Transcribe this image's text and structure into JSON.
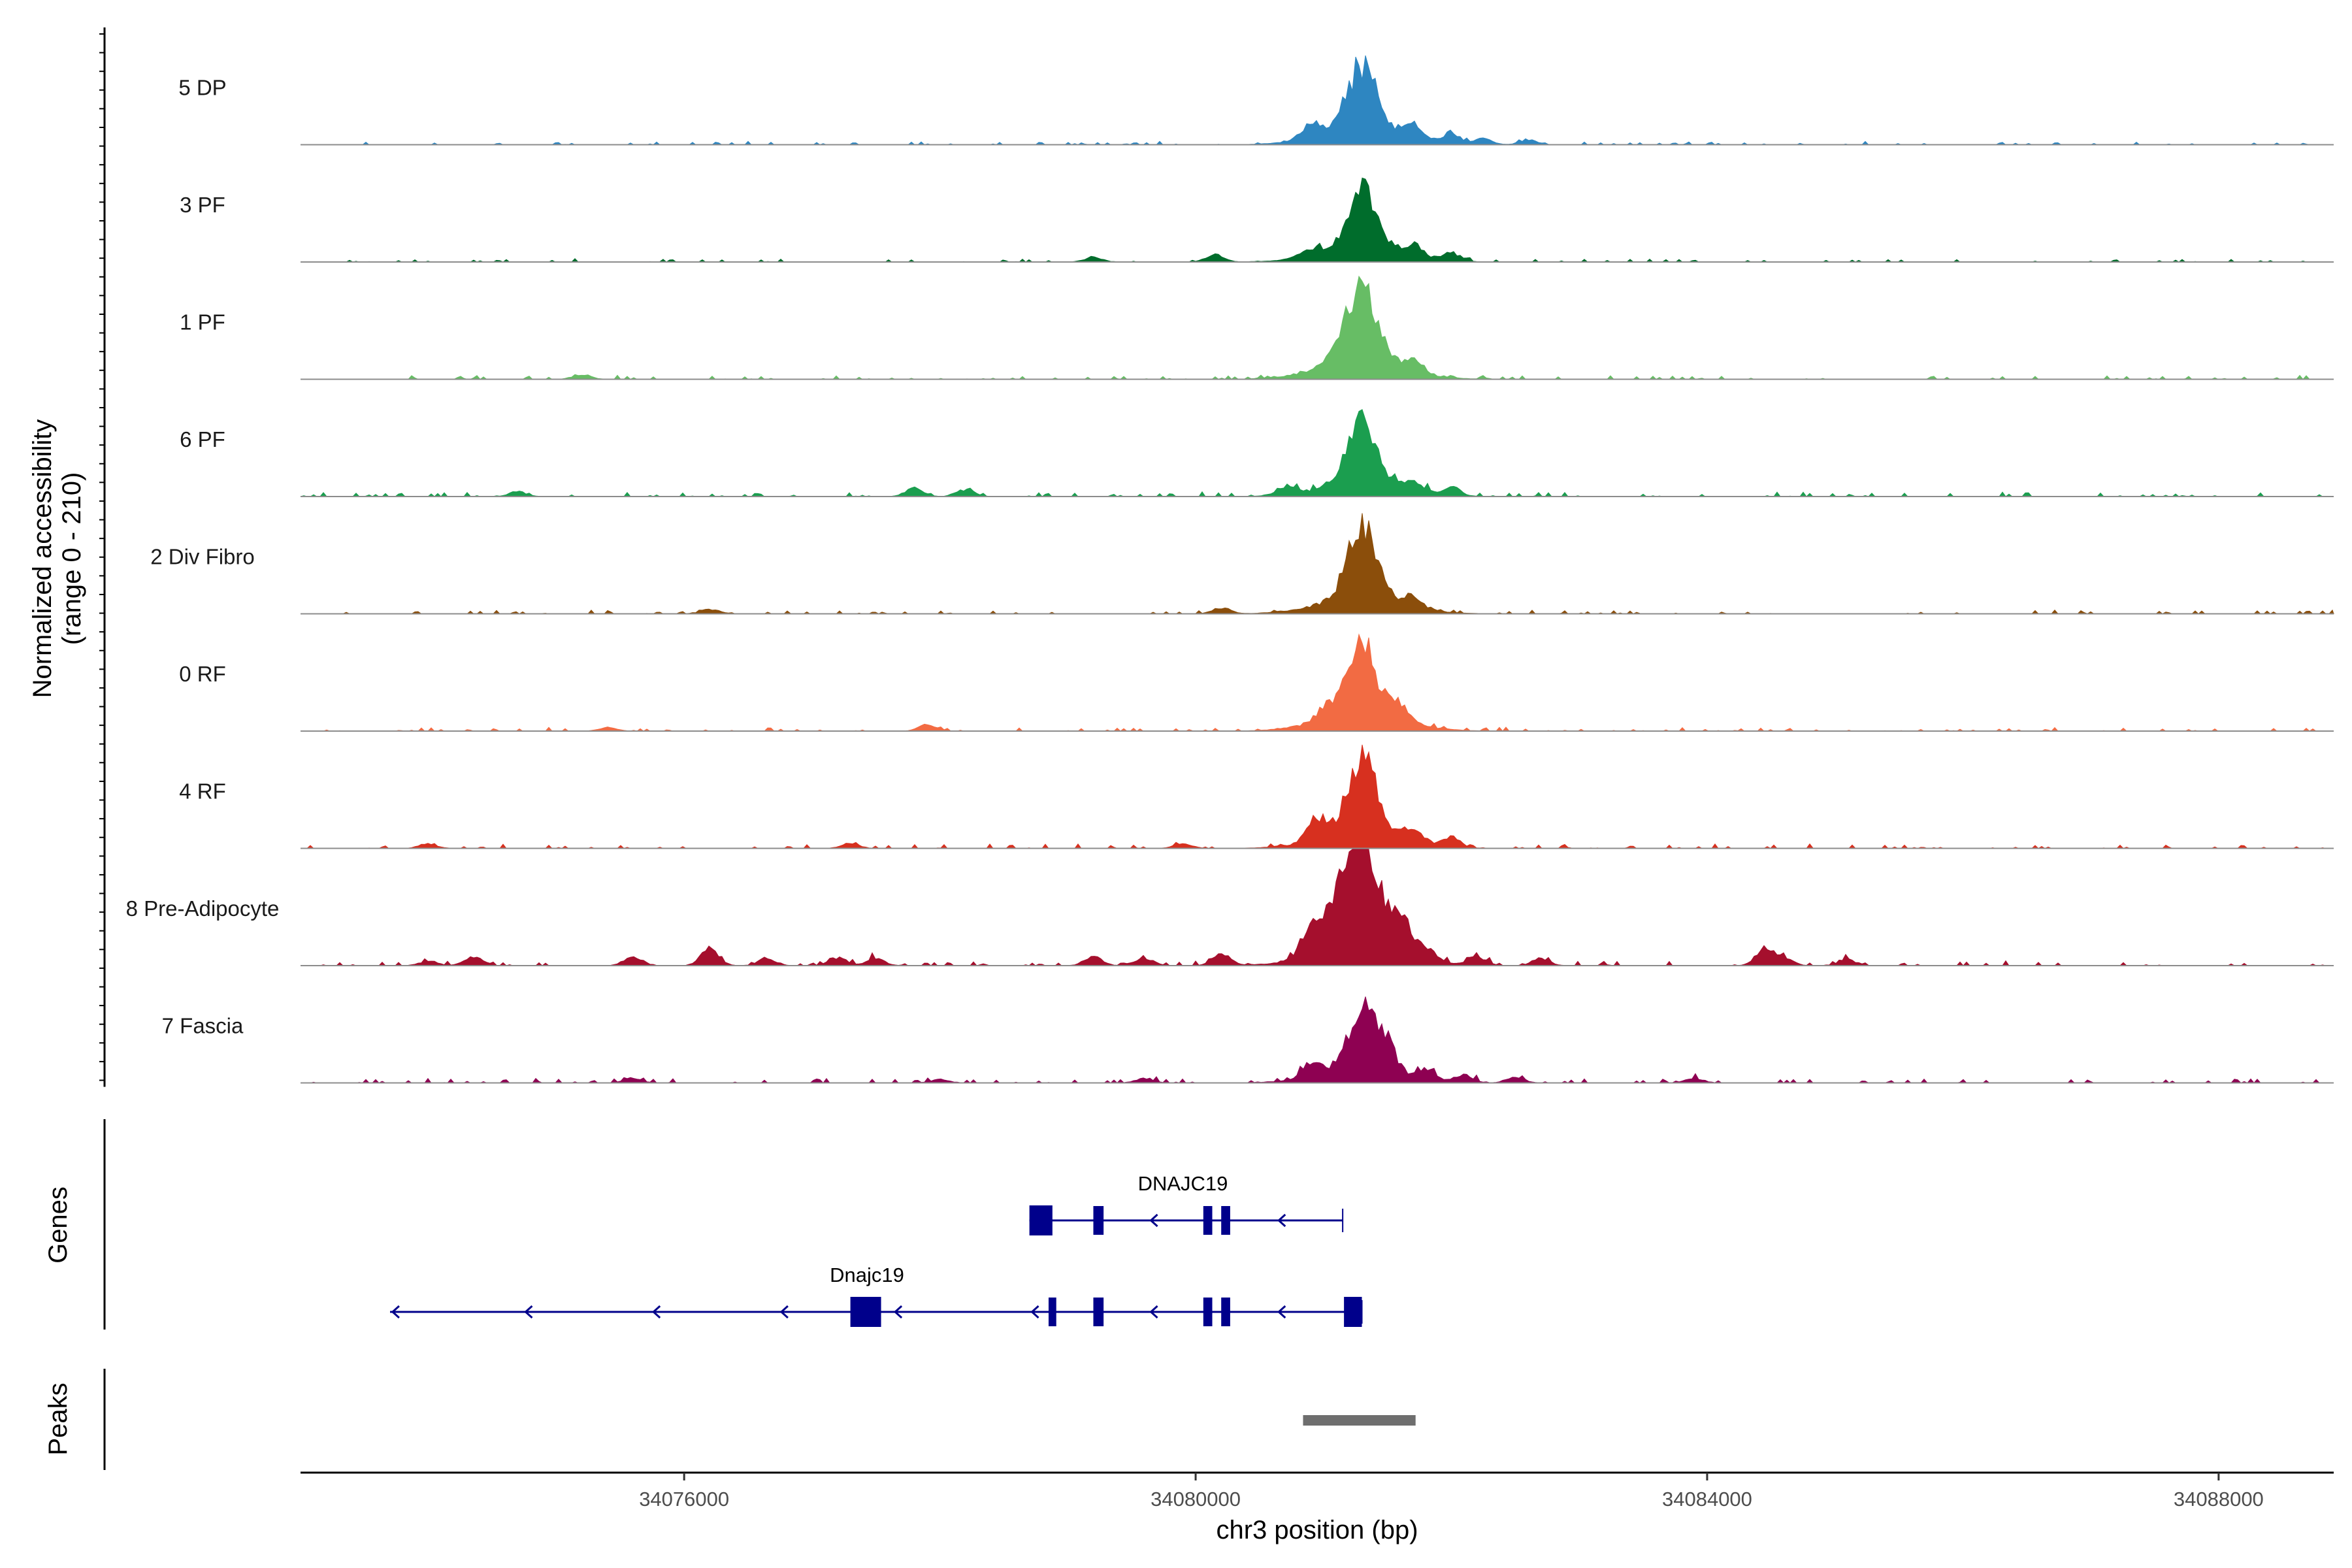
{
  "chart_data": {
    "type": "area",
    "title": "",
    "ylabel_line1": "Normalized accessibility",
    "ylabel_line2": "(range 0 - 210)",
    "y_range": [
      0,
      210
    ],
    "xlabel": "chr3 position (bp)",
    "xlim": [
      34073000,
      34088900
    ],
    "x_ticks": [
      34076000,
      34080000,
      34084000,
      34088000
    ],
    "x_tick_labels": [
      "34076000",
      "34080000",
      "34084000",
      "34088000"
    ],
    "main_peak_center": 34081300,
    "tracks": [
      {
        "name": "5 DP",
        "color": "#2E86C1",
        "peak_height": 0.55,
        "noise": 0.025,
        "seed": 11,
        "extra_peaks": [
          [
            34080900,
            0.12
          ],
          [
            34081700,
            0.12
          ],
          [
            34082000,
            0.09
          ],
          [
            34082250,
            0.05
          ],
          [
            34082600,
            0.04
          ]
        ]
      },
      {
        "name": "3 PF",
        "color": "#006D2C",
        "peak_height": 0.5,
        "noise": 0.025,
        "seed": 23,
        "extra_peaks": [
          [
            34080150,
            0.06
          ],
          [
            34080900,
            0.06
          ],
          [
            34081700,
            0.1
          ],
          [
            34082000,
            0.07
          ],
          [
            34079200,
            0.04
          ]
        ]
      },
      {
        "name": "1 PF",
        "color": "#67BD65",
        "peak_height": 0.68,
        "noise": 0.03,
        "seed": 37,
        "extra_peaks": [
          [
            34081700,
            0.1
          ],
          [
            34081100,
            0.05
          ],
          [
            34075200,
            0.04
          ]
        ]
      },
      {
        "name": "6 PF",
        "color": "#1B9E4F",
        "peak_height": 0.5,
        "noise": 0.035,
        "seed": 41,
        "extra_peaks": [
          [
            34077800,
            0.07
          ],
          [
            34078200,
            0.06
          ],
          [
            34080700,
            0.06
          ],
          [
            34081700,
            0.1
          ],
          [
            34082000,
            0.07
          ],
          [
            34074700,
            0.04
          ]
        ]
      },
      {
        "name": "2 Div Fibro",
        "color": "#8B4E0B",
        "peak_height": 0.6,
        "noise": 0.03,
        "seed": 53,
        "extra_peaks": [
          [
            34081700,
            0.08
          ],
          [
            34080200,
            0.05
          ],
          [
            34076200,
            0.04
          ]
        ]
      },
      {
        "name": "0 RF",
        "color": "#F26B43",
        "peak_height": 0.6,
        "noise": 0.03,
        "seed": 67,
        "extra_peaks": [
          [
            34081000,
            0.1
          ],
          [
            34081600,
            0.12
          ],
          [
            34077900,
            0.05
          ],
          [
            34075400,
            0.03
          ]
        ]
      },
      {
        "name": "4 RF",
        "color": "#D7301F",
        "peak_height": 0.62,
        "noise": 0.035,
        "seed": 71,
        "extra_peaks": [
          [
            34080950,
            0.18
          ],
          [
            34081700,
            0.12
          ],
          [
            34082000,
            0.08
          ],
          [
            34074000,
            0.04
          ],
          [
            34077300,
            0.04
          ],
          [
            34079900,
            0.04
          ]
        ]
      },
      {
        "name": "8 Pre-Adipocyte",
        "color": "#A50F2D",
        "peak_height": 1.0,
        "noise": 0.04,
        "seed": 83,
        "extra_peaks": [
          [
            34080900,
            0.25
          ],
          [
            34081100,
            0.35
          ],
          [
            34081600,
            0.25
          ],
          [
            34074350,
            0.08
          ],
          [
            34075600,
            0.08
          ],
          [
            34076200,
            0.15
          ],
          [
            34076650,
            0.06
          ],
          [
            34077200,
            0.07
          ],
          [
            34077500,
            0.06
          ],
          [
            34079200,
            0.08
          ],
          [
            34079600,
            0.06
          ],
          [
            34080200,
            0.1
          ],
          [
            34081800,
            0.08
          ],
          [
            34082200,
            0.07
          ],
          [
            34082700,
            0.06
          ],
          [
            34084450,
            0.15
          ],
          [
            34084600,
            0.06
          ],
          [
            34085100,
            0.05
          ],
          [
            34074000,
            0.04
          ]
        ]
      },
      {
        "name": "7 Fascia",
        "color": "#8E0152",
        "peak_height": 0.5,
        "noise": 0.035,
        "seed": 97,
        "extra_peaks": [
          [
            34080900,
            0.12
          ],
          [
            34081500,
            0.2
          ],
          [
            34081800,
            0.08
          ],
          [
            34082100,
            0.06
          ],
          [
            34082500,
            0.05
          ],
          [
            34075600,
            0.04
          ],
          [
            34078000,
            0.03
          ],
          [
            34079600,
            0.04
          ],
          [
            34083900,
            0.04
          ]
        ]
      }
    ],
    "genes_label": "Genes",
    "genes": [
      {
        "name": "DNAJC19",
        "start": 34078700,
        "end": 34081150,
        "strand": "-",
        "exons": [
          [
            34078700,
            34078880
          ],
          [
            34079200,
            34079280
          ],
          [
            34080060,
            34080130
          ],
          [
            34080200,
            34080270
          ]
        ],
        "arrows": [
          34079650,
          34080650
        ]
      },
      {
        "name": "Dnajc19",
        "start": 34073700,
        "end": 34081300,
        "strand": "-",
        "exons": [
          [
            34077300,
            34077540
          ],
          [
            34078850,
            34078910
          ],
          [
            34079200,
            34079280
          ],
          [
            34080060,
            34080130
          ],
          [
            34080200,
            34080270
          ],
          [
            34081160,
            34081300
          ]
        ],
        "arrows": [
          34073720,
          34074760,
          34075760,
          34076760,
          34077650,
          34078720,
          34079650,
          34080650
        ]
      }
    ],
    "peaks_label": "Peaks",
    "peaks": [
      [
        34080840,
        34081720
      ]
    ]
  }
}
